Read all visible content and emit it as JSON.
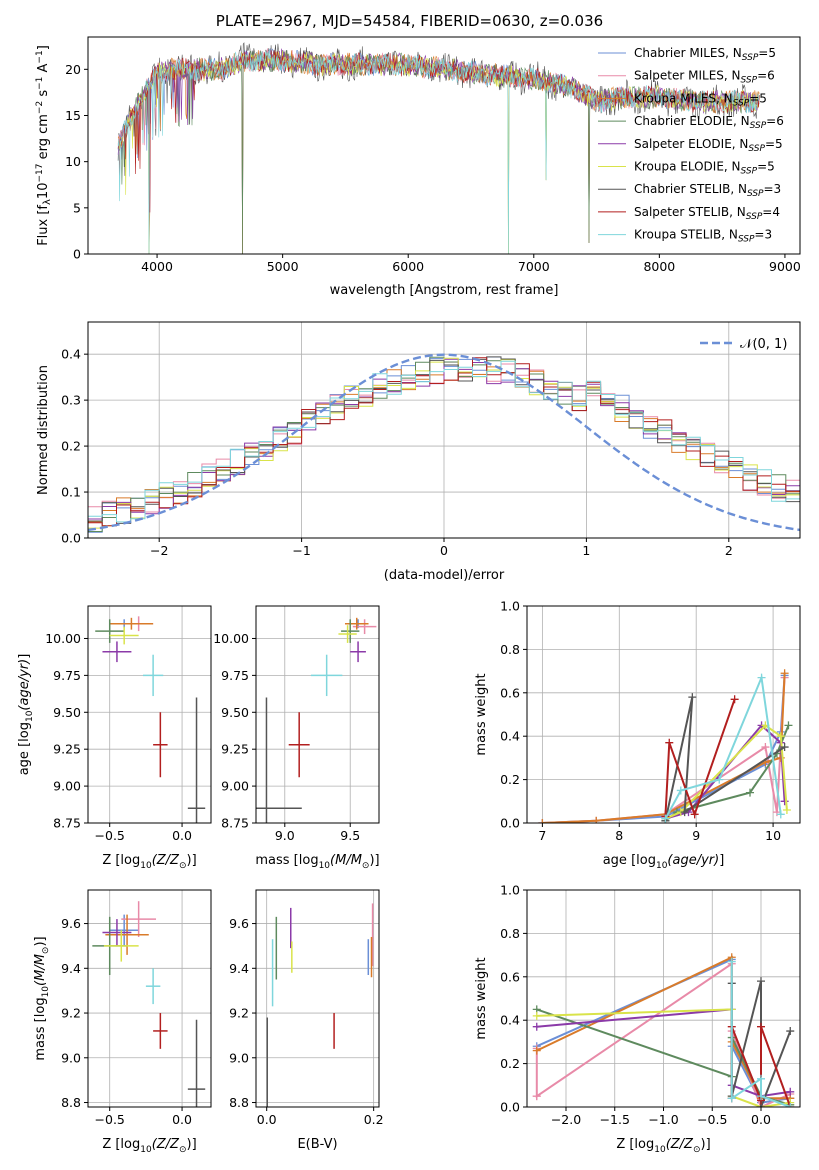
{
  "title": "PLATE=2967, MJD=54584, FIBERID=0630, z=0.036",
  "colors": [
    "#6b8fd6",
    "#e88aa8",
    "#d97b2a",
    "#5e8a5e",
    "#8b3aa8",
    "#d9e34a",
    "#555555",
    "#b21f1f",
    "#7fd6dc"
  ],
  "legend_labels": [
    "Chabrier MILES, N_SSP=5",
    "Salpeter MILES, N_SSP=6",
    "Kroupa MILES, N_SSP=5",
    "Chabrier ELODIE, N_SSP=6",
    "Salpeter ELODIE, N_SSP=5",
    "Kroupa ELODIE, N_SSP=5",
    "Chabrier STELIB, N_SSP=3",
    "Salpeter STELIB, N_SSP=4",
    "Kroupa STELIB, N_SSP=3"
  ],
  "chart_data": [
    {
      "id": "spectrum",
      "type": "line",
      "xlabel": "wavelength [Angstrom, rest frame]",
      "ylabel": "Flux [f_λ 10^-17 erg cm^-2 s^-1 A^-1]",
      "xlim": [
        3450,
        9120
      ],
      "ylim": [
        0,
        23.5
      ],
      "xticks": [
        4000,
        5000,
        6000,
        7000,
        8000,
        9000
      ],
      "yticks": [
        0,
        5,
        10,
        15,
        20
      ],
      "envelope": {
        "x": [
          3700,
          3800,
          3900,
          4000,
          4100,
          4200,
          4300,
          4400,
          4500,
          4700,
          5000,
          5300,
          5600,
          6000,
          6300,
          6600,
          7000,
          7300,
          7500,
          7700,
          8000,
          8300,
          8600,
          8800
        ],
        "y": [
          12,
          15,
          17.5,
          19.5,
          20,
          20,
          20,
          20,
          20,
          21,
          21,
          20.5,
          20.5,
          20.5,
          20,
          19.5,
          19,
          18,
          16.5,
          17,
          17,
          16.5,
          16.5,
          16.5
        ]
      },
      "drops": [
        [
          3935,
          0
        ],
        [
          4680,
          0
        ],
        [
          6800,
          0
        ],
        [
          7440,
          1.2
        ],
        [
          7100,
          8
        ],
        [
          3940,
          4.5
        ]
      ],
      "legend_position": "upper right"
    },
    {
      "id": "residuals",
      "type": "histogram",
      "xlabel": "(data-model)/error",
      "ylabel": "Normed distribution",
      "xlim": [
        -2.5,
        2.5
      ],
      "ylim": [
        0,
        0.47
      ],
      "xticks": [
        -2,
        -1,
        0,
        1,
        2
      ],
      "yticks": [
        0.0,
        0.1,
        0.2,
        0.3,
        0.4
      ],
      "bin_width": 0.1,
      "reference_curve": {
        "name": "N(0,1)",
        "mean": 0,
        "sigma": 1
      },
      "legend_position": "upper right"
    },
    {
      "id": "age-vs-Z",
      "type": "errorbar",
      "xlabel": "Z [log10(Z/Z_sun)]",
      "ylabel": "age [log10(age/yr)]",
      "xlim": [
        -0.65,
        0.2
      ],
      "ylim": [
        8.75,
        10.22
      ],
      "xticks": [
        -0.5,
        0.0
      ],
      "yticks": [
        8.75,
        9.0,
        9.25,
        9.5,
        9.75,
        10.0
      ],
      "points": [
        {
          "x": -0.4,
          "xerr": 0.1,
          "y": 10.1,
          "yerr": 0.03
        },
        {
          "x": -0.3,
          "xerr": 0.1,
          "y": 10.1,
          "yerr": 0.05
        },
        {
          "x": -0.35,
          "xerr": 0.15,
          "y": 10.1,
          "yerr": 0.04
        },
        {
          "x": -0.5,
          "xerr": 0.1,
          "y": 10.05,
          "yerr": 0.08
        },
        {
          "x": -0.45,
          "xerr": 0.1,
          "y": 9.91,
          "yerr": 0.07
        },
        {
          "x": -0.4,
          "xerr": 0.1,
          "y": 10.02,
          "yerr": 0.06
        },
        {
          "x": 0.1,
          "xerr": 0.06,
          "y": 8.85,
          "yerr": 0.75
        },
        {
          "x": -0.15,
          "xerr": 0.05,
          "y": 9.28,
          "yerr": 0.22
        },
        {
          "x": -0.2,
          "xerr": 0.07,
          "y": 9.75,
          "yerr": 0.14
        }
      ]
    },
    {
      "id": "age-vs-mass",
      "type": "errorbar",
      "xlabel": "mass [log10(M/M_sun)]",
      "ylabel": "",
      "xlim": [
        8.78,
        9.72
      ],
      "ylim": [
        8.75,
        10.22
      ],
      "xticks": [
        9.0,
        9.5
      ],
      "yticks": [
        8.75,
        9.0,
        9.25,
        9.5,
        9.75,
        10.0
      ],
      "points": [
        {
          "x": 9.56,
          "xerr": 0.07,
          "y": 10.1,
          "yerr": 0.03
        },
        {
          "x": 9.61,
          "xerr": 0.09,
          "y": 10.08,
          "yerr": 0.05
        },
        {
          "x": 9.55,
          "xerr": 0.09,
          "y": 10.1,
          "yerr": 0.04
        },
        {
          "x": 9.5,
          "xerr": 0.07,
          "y": 10.05,
          "yerr": 0.08
        },
        {
          "x": 9.56,
          "xerr": 0.06,
          "y": 9.91,
          "yerr": 0.07
        },
        {
          "x": 9.48,
          "xerr": 0.07,
          "y": 10.03,
          "yerr": 0.06
        },
        {
          "x": 8.86,
          "xerr": 0.27,
          "y": 8.85,
          "yerr": 0.75
        },
        {
          "x": 9.11,
          "xerr": 0.08,
          "y": 9.28,
          "yerr": 0.22
        },
        {
          "x": 9.32,
          "xerr": 0.12,
          "y": 9.75,
          "yerr": 0.14
        }
      ]
    },
    {
      "id": "mass-weight-vs-age",
      "type": "line",
      "xlabel": "age [log10(age/yr)]",
      "ylabel": "mass weight",
      "xlim": [
        6.8,
        10.35
      ],
      "ylim": [
        0,
        1.0
      ],
      "xticks": [
        7,
        8,
        9,
        10
      ],
      "yticks": [
        0.0,
        0.2,
        0.4,
        0.6,
        0.8,
        1.0
      ],
      "series": [
        {
          "points": [
            [
              7.0,
              0.0
            ],
            [
              7.7,
              0.01
            ],
            [
              8.6,
              0.03
            ],
            [
              9.9,
              0.27
            ],
            [
              10.1,
              0.42
            ],
            [
              10.15,
              0.68
            ]
          ]
        },
        {
          "points": [
            [
              7.0,
              0.0
            ],
            [
              7.7,
              0.01
            ],
            [
              8.6,
              0.04
            ],
            [
              9.9,
              0.35
            ],
            [
              10.05,
              0.05
            ],
            [
              10.15,
              0.67
            ]
          ]
        },
        {
          "points": [
            [
              7.0,
              0.0
            ],
            [
              7.7,
              0.01
            ],
            [
              8.6,
              0.04
            ],
            [
              9.9,
              0.28
            ],
            [
              10.1,
              0.3
            ],
            [
              10.15,
              0.69
            ]
          ]
        },
        {
          "points": [
            [
              8.6,
              0.01
            ],
            [
              8.75,
              0.05
            ],
            [
              9.7,
              0.14
            ],
            [
              10.05,
              0.32
            ],
            [
              10.2,
              0.45
            ]
          ]
        },
        {
          "points": [
            [
              8.6,
              0.02
            ],
            [
              8.9,
              0.05
            ],
            [
              9.85,
              0.45
            ],
            [
              10.1,
              0.37
            ],
            [
              10.15,
              0.1
            ]
          ]
        },
        {
          "points": [
            [
              8.6,
              0.02
            ],
            [
              8.8,
              0.05
            ],
            [
              9.9,
              0.45
            ],
            [
              10.1,
              0.4
            ],
            [
              10.18,
              0.06
            ]
          ]
        },
        {
          "points": [
            [
              8.6,
              0.01
            ],
            [
              8.95,
              0.58
            ],
            [
              8.85,
              0.05
            ],
            [
              10.15,
              0.35
            ]
          ]
        },
        {
          "points": [
            [
              8.6,
              0.03
            ],
            [
              8.65,
              0.37
            ],
            [
              8.98,
              0.04
            ],
            [
              9.5,
              0.57
            ]
          ]
        },
        {
          "points": [
            [
              8.6,
              0.02
            ],
            [
              8.8,
              0.15
            ],
            [
              9.3,
              0.2
            ],
            [
              9.85,
              0.67
            ],
            [
              10.1,
              0.04
            ]
          ]
        }
      ]
    },
    {
      "id": "mass-vs-Z",
      "type": "errorbar",
      "xlabel": "Z [log10(Z/Z_sun)]",
      "ylabel": "mass [log10(M/M_sun)]",
      "xlim": [
        -0.65,
        0.2
      ],
      "ylim": [
        8.78,
        9.75
      ],
      "xticks": [
        -0.5,
        0.0
      ],
      "yticks": [
        8.8,
        9.0,
        9.2,
        9.4,
        9.6
      ],
      "points": [
        {
          "x": -0.4,
          "xerr": 0.1,
          "y": 9.57,
          "yerr": 0.07
        },
        {
          "x": -0.3,
          "xerr": 0.12,
          "y": 9.62,
          "yerr": 0.08
        },
        {
          "x": -0.38,
          "xerr": 0.15,
          "y": 9.55,
          "yerr": 0.09
        },
        {
          "x": -0.5,
          "xerr": 0.12,
          "y": 9.5,
          "yerr": 0.13
        },
        {
          "x": -0.45,
          "xerr": 0.1,
          "y": 9.56,
          "yerr": 0.06
        },
        {
          "x": -0.42,
          "xerr": 0.12,
          "y": 9.5,
          "yerr": 0.07
        },
        {
          "x": 0.1,
          "xerr": 0.06,
          "y": 8.86,
          "yerr": 0.31
        },
        {
          "x": -0.15,
          "xerr": 0.05,
          "y": 9.12,
          "yerr": 0.08
        },
        {
          "x": -0.2,
          "xerr": 0.05,
          "y": 9.32,
          "yerr": 0.08
        }
      ]
    },
    {
      "id": "mass-vs-EBV",
      "type": "errorbar",
      "xlabel": "E(B-V)",
      "ylabel": "",
      "xlim": [
        -0.02,
        0.21
      ],
      "ylim": [
        8.78,
        9.75
      ],
      "xticks": [
        0.0,
        0.2
      ],
      "yticks": [
        8.8,
        9.0,
        9.2,
        9.4,
        9.6
      ],
      "points": [
        {
          "x": 0.19,
          "xerr": 0.0,
          "y": 9.45,
          "yerr": 0.08
        },
        {
          "x": 0.198,
          "xerr": 0.0,
          "y": 9.55,
          "yerr": 0.14
        },
        {
          "x": 0.196,
          "xerr": 0.0,
          "y": 9.45,
          "yerr": 0.09
        },
        {
          "x": 0.018,
          "xerr": 0.0,
          "y": 9.49,
          "yerr": 0.14
        },
        {
          "x": 0.045,
          "xerr": 0.0,
          "y": 9.58,
          "yerr": 0.09
        },
        {
          "x": 0.047,
          "xerr": 0.0,
          "y": 9.45,
          "yerr": 0.07
        },
        {
          "x": 0.001,
          "xerr": 0.0,
          "y": 8.98,
          "yerr": 0.2
        },
        {
          "x": 0.126,
          "xerr": 0.0,
          "y": 9.12,
          "yerr": 0.08
        },
        {
          "x": 0.011,
          "xerr": 0.0,
          "y": 9.38,
          "yerr": 0.15
        }
      ]
    },
    {
      "id": "mass-weight-vs-Z",
      "type": "line",
      "xlabel": "Z [log10(Z/Z_sun)]",
      "ylabel": "mass weight",
      "xlim": [
        -2.4,
        0.4
      ],
      "ylim": [
        0,
        1.0
      ],
      "xticks": [
        -2.0,
        -1.5,
        -1.0,
        -0.5,
        0.0
      ],
      "yticks": [
        0.0,
        0.2,
        0.4,
        0.6,
        0.8,
        1.0
      ],
      "series": [
        {
          "points": [
            [
              -2.3,
              0.28
            ],
            [
              -0.3,
              0.68
            ],
            [
              -0.3,
              0.28
            ],
            [
              0.0,
              0.02
            ],
            [
              0.3,
              0.04
            ]
          ]
        },
        {
          "points": [
            [
              -2.3,
              0.05
            ],
            [
              -2.3,
              0.27
            ],
            [
              -2.3,
              0.05
            ],
            [
              -0.3,
              0.66
            ],
            [
              -0.3,
              0.35
            ],
            [
              0.0,
              0.0
            ],
            [
              0.3,
              0.06
            ]
          ]
        },
        {
          "points": [
            [
              -2.3,
              0.26
            ],
            [
              -0.3,
              0.69
            ],
            [
              -0.3,
              0.3
            ],
            [
              0.0,
              0.04
            ],
            [
              0.3,
              0.04
            ]
          ]
        },
        {
          "points": [
            [
              -2.3,
              0.45
            ],
            [
              -0.3,
              0.14
            ],
            [
              -0.3,
              0.32
            ],
            [
              0.0,
              0.05
            ],
            [
              0.3,
              0.01
            ]
          ]
        },
        {
          "points": [
            [
              -2.3,
              0.37
            ],
            [
              -0.3,
              0.45
            ],
            [
              -0.3,
              0.1
            ],
            [
              0.0,
              0.05
            ],
            [
              0.3,
              0.07
            ]
          ]
        },
        {
          "points": [
            [
              -2.3,
              0.42
            ],
            [
              -0.3,
              0.45
            ],
            [
              -0.3,
              0.05
            ],
            [
              0.0,
              0.0
            ],
            [
              0.3,
              0.02
            ]
          ]
        },
        {
          "points": [
            [
              -0.3,
              0.57
            ],
            [
              -0.3,
              0.05
            ],
            [
              0.0,
              0.58
            ],
            [
              0.0,
              0.0
            ],
            [
              0.3,
              0.35
            ]
          ]
        },
        {
          "points": [
            [
              -0.3,
              0.04
            ],
            [
              -0.3,
              0.37
            ],
            [
              0.0,
              0.03
            ],
            [
              0.0,
              0.37
            ],
            [
              0.3,
              0.0
            ]
          ]
        },
        {
          "points": [
            [
              -0.3,
              0.67
            ],
            [
              -0.3,
              0.04
            ],
            [
              0.0,
              0.13
            ],
            [
              0.0,
              0.05
            ],
            [
              0.3,
              0.0
            ]
          ]
        }
      ]
    }
  ]
}
